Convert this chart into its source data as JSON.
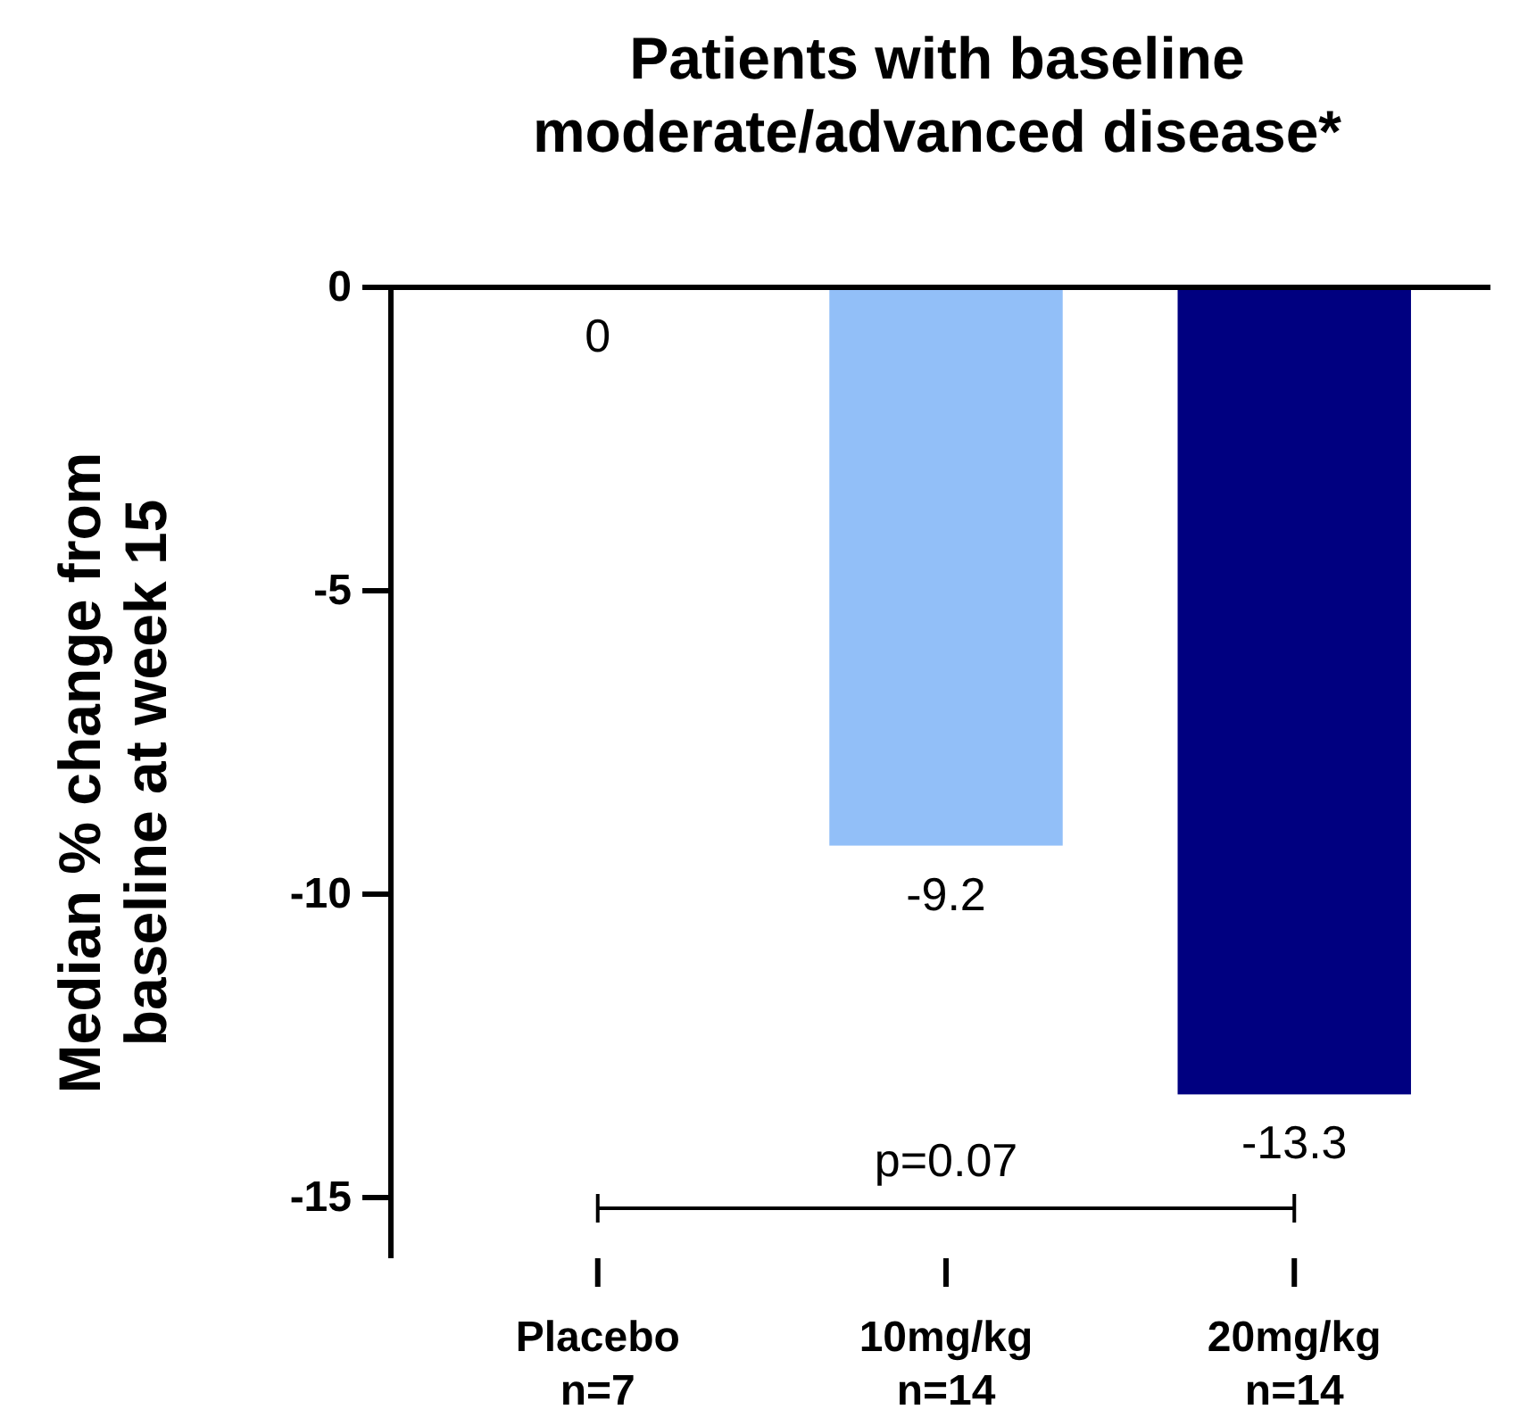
{
  "chart_data": {
    "type": "bar",
    "title": "Patients with baseline\nmoderate/advanced disease*",
    "ylabel": "Median % change from\nbaseline at week 15",
    "categories": [
      "Placebo\nn=7",
      "10mg/kg\nn=14",
      "20mg/kg\nn=14"
    ],
    "values": [
      0,
      -9.2,
      -13.3
    ],
    "colors": [
      "#ffffff",
      "#92bff8",
      "#000080"
    ],
    "ylim": [
      -16,
      0
    ],
    "yticks": [
      0,
      -5,
      -10,
      -15
    ],
    "data_labels": true,
    "annotations": [
      "p=0.07"
    ]
  }
}
